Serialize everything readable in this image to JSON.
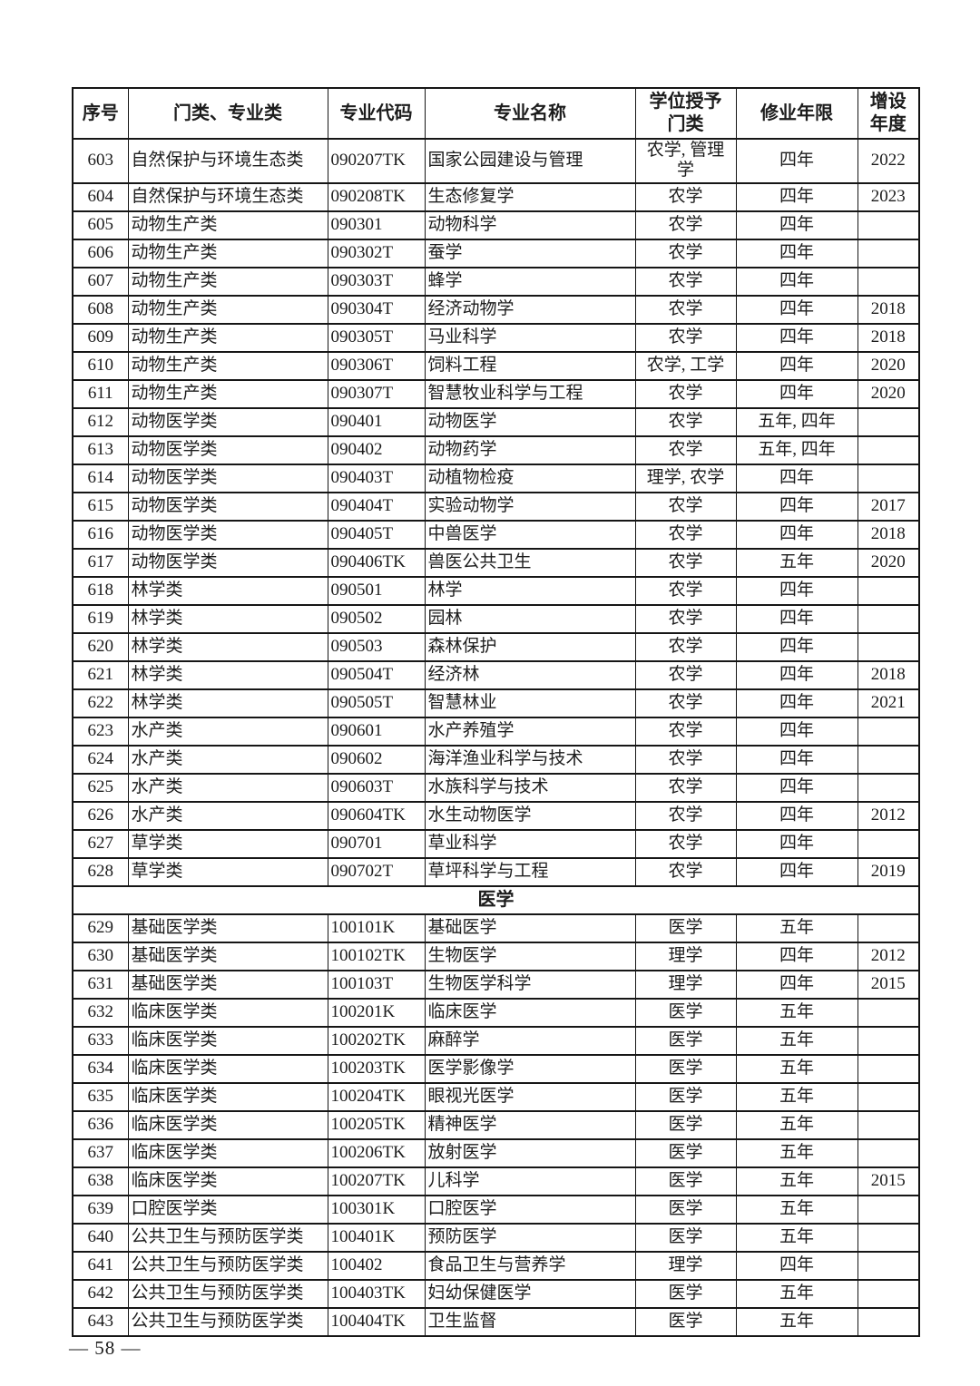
{
  "page": {
    "number_label": "— 58 —"
  },
  "table": {
    "headers": [
      "序号",
      "门类、专业类",
      "专业代码",
      "专业名称",
      "学位授予\n门类",
      "修业年限",
      "增设\n年度"
    ],
    "section_label": "医学",
    "rows_part1": [
      {
        "no": "603",
        "category": "自然保护与环境生态类",
        "code": "090207TK",
        "name": "国家公园建设与管理",
        "degree": "农学, 管理学",
        "years": "四年",
        "added": "2022"
      },
      {
        "no": "604",
        "category": "自然保护与环境生态类",
        "code": "090208TK",
        "name": "生态修复学",
        "degree": "农学",
        "years": "四年",
        "added": "2023"
      },
      {
        "no": "605",
        "category": "动物生产类",
        "code": "090301",
        "name": "动物科学",
        "degree": "农学",
        "years": "四年",
        "added": ""
      },
      {
        "no": "606",
        "category": "动物生产类",
        "code": "090302T",
        "name": "蚕学",
        "degree": "农学",
        "years": "四年",
        "added": ""
      },
      {
        "no": "607",
        "category": "动物生产类",
        "code": "090303T",
        "name": "蜂学",
        "degree": "农学",
        "years": "四年",
        "added": ""
      },
      {
        "no": "608",
        "category": "动物生产类",
        "code": "090304T",
        "name": "经济动物学",
        "degree": "农学",
        "years": "四年",
        "added": "2018"
      },
      {
        "no": "609",
        "category": "动物生产类",
        "code": "090305T",
        "name": "马业科学",
        "degree": "农学",
        "years": "四年",
        "added": "2018"
      },
      {
        "no": "610",
        "category": "动物生产类",
        "code": "090306T",
        "name": "饲料工程",
        "degree": "农学, 工学",
        "years": "四年",
        "added": "2020"
      },
      {
        "no": "611",
        "category": "动物生产类",
        "code": "090307T",
        "name": "智慧牧业科学与工程",
        "degree": "农学",
        "years": "四年",
        "added": "2020"
      },
      {
        "no": "612",
        "category": "动物医学类",
        "code": "090401",
        "name": "动物医学",
        "degree": "农学",
        "years": "五年, 四年",
        "added": ""
      },
      {
        "no": "613",
        "category": "动物医学类",
        "code": "090402",
        "name": "动物药学",
        "degree": "农学",
        "years": "五年, 四年",
        "added": ""
      },
      {
        "no": "614",
        "category": "动物医学类",
        "code": "090403T",
        "name": "动植物检疫",
        "degree": "理学, 农学",
        "years": "四年",
        "added": ""
      },
      {
        "no": "615",
        "category": "动物医学类",
        "code": "090404T",
        "name": "实验动物学",
        "degree": "农学",
        "years": "四年",
        "added": "2017"
      },
      {
        "no": "616",
        "category": "动物医学类",
        "code": "090405T",
        "name": "中兽医学",
        "degree": "农学",
        "years": "四年",
        "added": "2018"
      },
      {
        "no": "617",
        "category": "动物医学类",
        "code": "090406TK",
        "name": "兽医公共卫生",
        "degree": "农学",
        "years": "五年",
        "added": "2020"
      },
      {
        "no": "618",
        "category": "林学类",
        "code": "090501",
        "name": "林学",
        "degree": "农学",
        "years": "四年",
        "added": ""
      },
      {
        "no": "619",
        "category": "林学类",
        "code": "090502",
        "name": "园林",
        "degree": "农学",
        "years": "四年",
        "added": ""
      },
      {
        "no": "620",
        "category": "林学类",
        "code": "090503",
        "name": "森林保护",
        "degree": "农学",
        "years": "四年",
        "added": ""
      },
      {
        "no": "621",
        "category": "林学类",
        "code": "090504T",
        "name": "经济林",
        "degree": "农学",
        "years": "四年",
        "added": "2018"
      },
      {
        "no": "622",
        "category": "林学类",
        "code": "090505T",
        "name": "智慧林业",
        "degree": "农学",
        "years": "四年",
        "added": "2021"
      },
      {
        "no": "623",
        "category": "水产类",
        "code": "090601",
        "name": "水产养殖学",
        "degree": "农学",
        "years": "四年",
        "added": ""
      },
      {
        "no": "624",
        "category": "水产类",
        "code": "090602",
        "name": "海洋渔业科学与技术",
        "degree": "农学",
        "years": "四年",
        "added": ""
      },
      {
        "no": "625",
        "category": "水产类",
        "code": "090603T",
        "name": "水族科学与技术",
        "degree": "农学",
        "years": "四年",
        "added": ""
      },
      {
        "no": "626",
        "category": "水产类",
        "code": "090604TK",
        "name": "水生动物医学",
        "degree": "农学",
        "years": "四年",
        "added": "2012"
      },
      {
        "no": "627",
        "category": "草学类",
        "code": "090701",
        "name": "草业科学",
        "degree": "农学",
        "years": "四年",
        "added": ""
      },
      {
        "no": "628",
        "category": "草学类",
        "code": "090702T",
        "name": "草坪科学与工程",
        "degree": "农学",
        "years": "四年",
        "added": "2019"
      }
    ],
    "rows_part2": [
      {
        "no": "629",
        "category": "基础医学类",
        "code": "100101K",
        "name": "基础医学",
        "degree": "医学",
        "years": "五年",
        "added": ""
      },
      {
        "no": "630",
        "category": "基础医学类",
        "code": "100102TK",
        "name": "生物医学",
        "degree": "理学",
        "years": "四年",
        "added": "2012"
      },
      {
        "no": "631",
        "category": "基础医学类",
        "code": "100103T",
        "name": "生物医学科学",
        "degree": "理学",
        "years": "四年",
        "added": "2015"
      },
      {
        "no": "632",
        "category": "临床医学类",
        "code": "100201K",
        "name": "临床医学",
        "degree": "医学",
        "years": "五年",
        "added": ""
      },
      {
        "no": "633",
        "category": "临床医学类",
        "code": "100202TK",
        "name": "麻醉学",
        "degree": "医学",
        "years": "五年",
        "added": ""
      },
      {
        "no": "634",
        "category": "临床医学类",
        "code": "100203TK",
        "name": "医学影像学",
        "degree": "医学",
        "years": "五年",
        "added": ""
      },
      {
        "no": "635",
        "category": "临床医学类",
        "code": "100204TK",
        "name": "眼视光医学",
        "degree": "医学",
        "years": "五年",
        "added": ""
      },
      {
        "no": "636",
        "category": "临床医学类",
        "code": "100205TK",
        "name": "精神医学",
        "degree": "医学",
        "years": "五年",
        "added": ""
      },
      {
        "no": "637",
        "category": "临床医学类",
        "code": "100206TK",
        "name": "放射医学",
        "degree": "医学",
        "years": "五年",
        "added": ""
      },
      {
        "no": "638",
        "category": "临床医学类",
        "code": "100207TK",
        "name": "儿科学",
        "degree": "医学",
        "years": "五年",
        "added": "2015"
      },
      {
        "no": "639",
        "category": "口腔医学类",
        "code": "100301K",
        "name": "口腔医学",
        "degree": "医学",
        "years": "五年",
        "added": ""
      },
      {
        "no": "640",
        "category": "公共卫生与预防医学类",
        "code": "100401K",
        "name": "预防医学",
        "degree": "医学",
        "years": "五年",
        "added": ""
      },
      {
        "no": "641",
        "category": "公共卫生与预防医学类",
        "code": "100402",
        "name": "食品卫生与营养学",
        "degree": "理学",
        "years": "四年",
        "added": ""
      },
      {
        "no": "642",
        "category": "公共卫生与预防医学类",
        "code": "100403TK",
        "name": "妇幼保健医学",
        "degree": "医学",
        "years": "五年",
        "added": ""
      },
      {
        "no": "643",
        "category": "公共卫生与预防医学类",
        "code": "100404TK",
        "name": "卫生监督",
        "degree": "医学",
        "years": "五年",
        "added": ""
      }
    ]
  }
}
